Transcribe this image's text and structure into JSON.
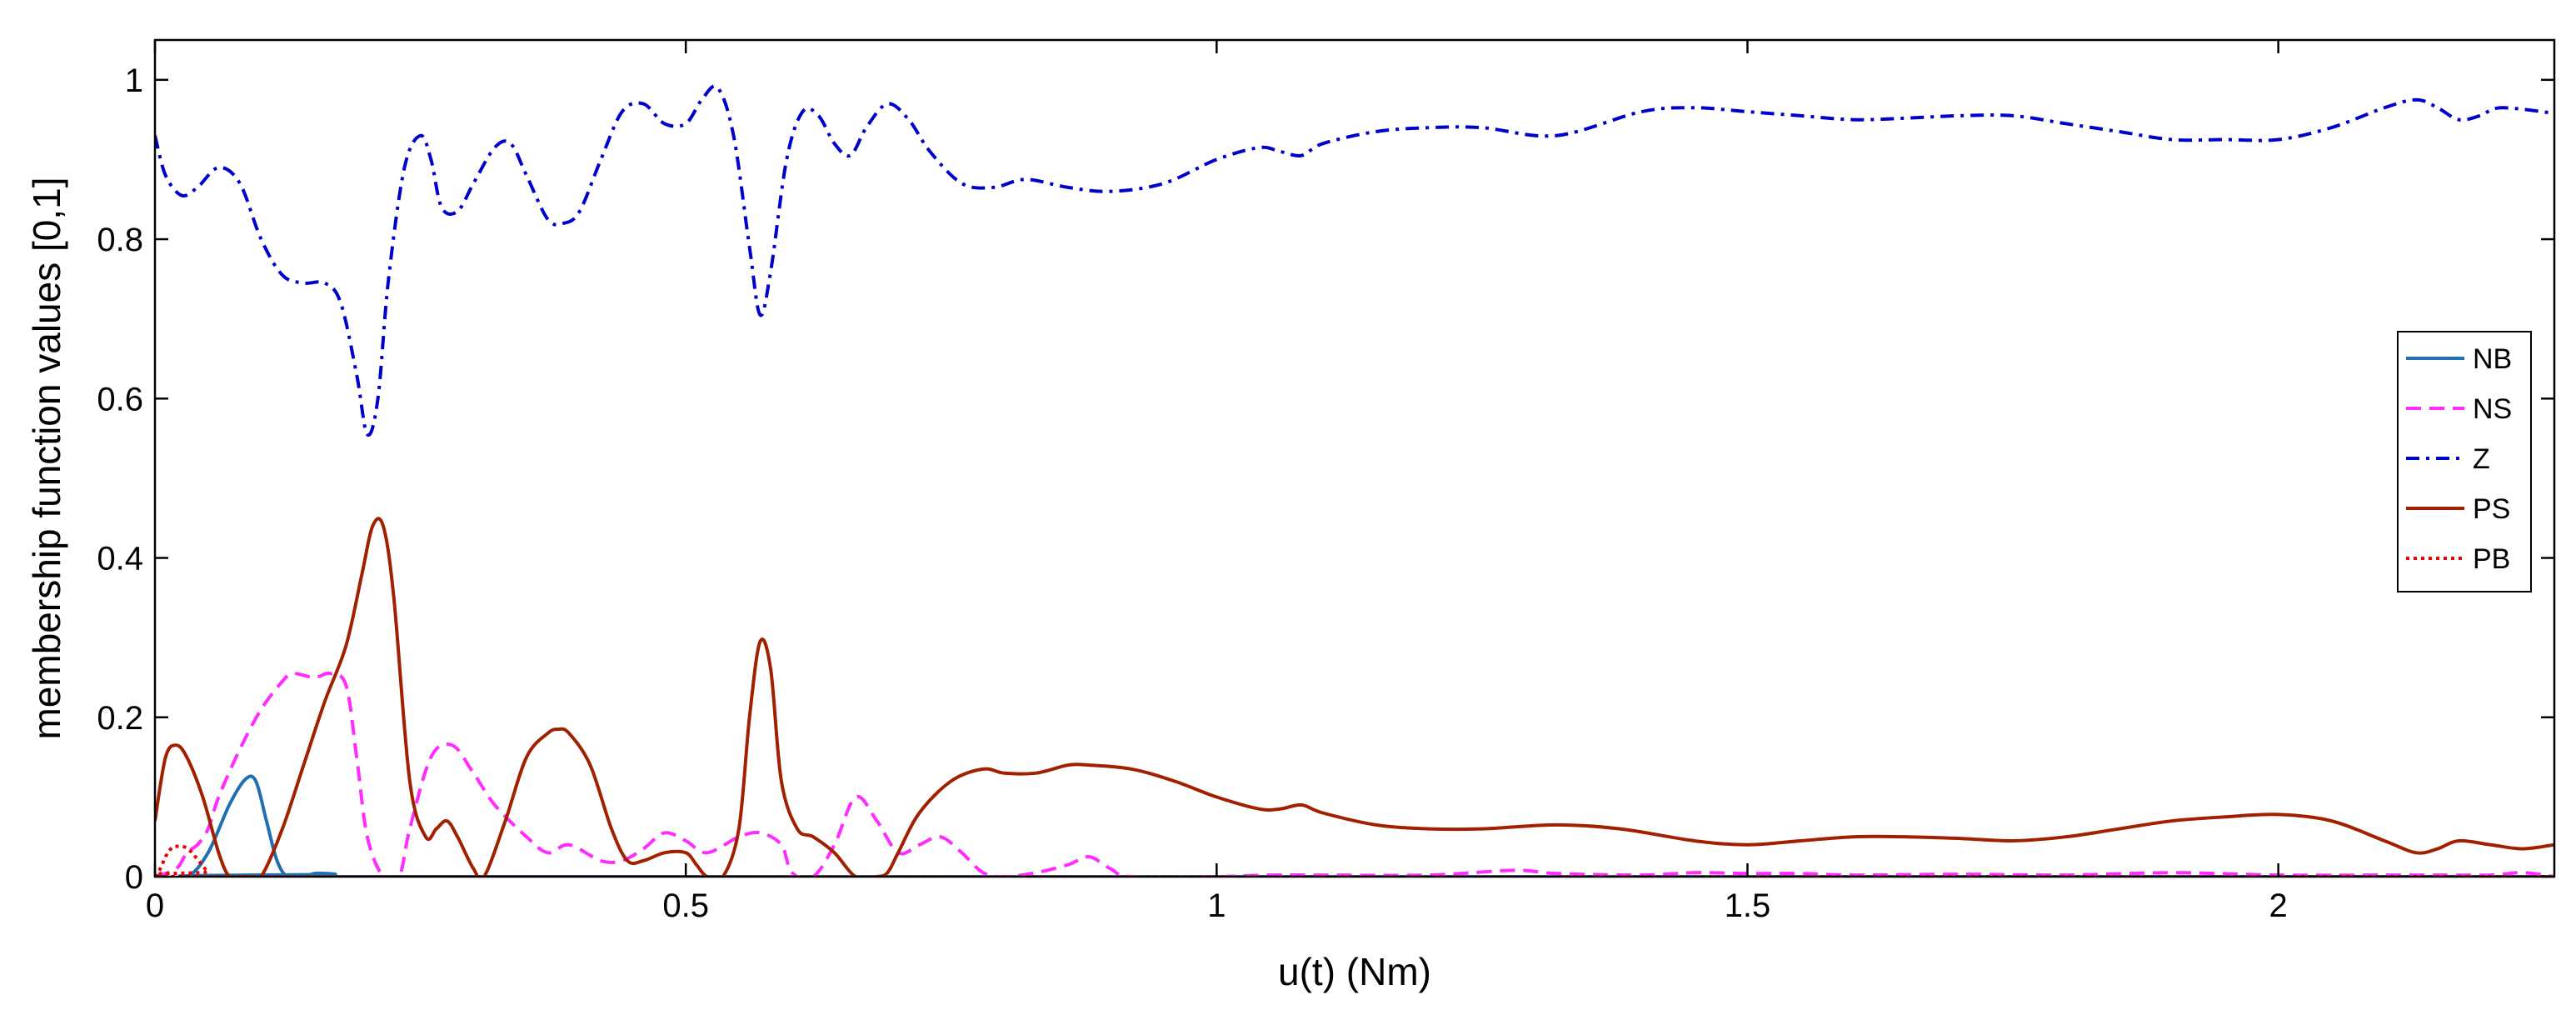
{
  "chart_data": {
    "type": "line",
    "title": "",
    "xlabel": "u(t) (Nm)",
    "ylabel": "membership function values [0,1]",
    "xlim": [
      0,
      2.26
    ],
    "ylim": [
      0,
      1.05
    ],
    "xticks": [
      0,
      0.5,
      1,
      1.5,
      2
    ],
    "xtick_labels": [
      "0",
      "0.5",
      "1",
      "1.5",
      "2"
    ],
    "yticks": [
      0,
      0.2,
      0.4,
      0.6,
      0.8,
      1
    ],
    "ytick_labels": [
      "0",
      "0.2",
      "0.4",
      "0.6",
      "0.8",
      "1"
    ],
    "grid": false,
    "legend_position": "right",
    "series": [
      {
        "name": "NB",
        "color": "#1f6fb2",
        "dash": "solid",
        "x": [
          0,
          0.03,
          0.05,
          0.07,
          0.085,
          0.095,
          0.105,
          0.115,
          0.125,
          0.14,
          0.15,
          0.16,
          0.17,
          0.18,
          2.26
        ],
        "y": [
          0,
          0,
          0.03,
          0.09,
          0.122,
          0.12,
          0.07,
          0.02,
          0,
          0,
          0.004,
          0.004,
          0.003,
          0,
          0
        ]
      },
      {
        "name": "NS",
        "color": "#ff2bff",
        "dash": "dashed",
        "x": [
          0,
          0.02,
          0.03,
          0.04,
          0.05,
          0.06,
          0.08,
          0.1,
          0.12,
          0.13,
          0.15,
          0.165,
          0.18,
          0.19,
          0.2,
          0.215,
          0.23,
          0.24,
          0.26,
          0.28,
          0.3,
          0.32,
          0.35,
          0.37,
          0.39,
          0.42,
          0.44,
          0.46,
          0.48,
          0.5,
          0.52,
          0.55,
          0.57,
          0.59,
          0.6,
          0.62,
          0.64,
          0.66,
          0.68,
          0.7,
          0.72,
          0.74,
          0.76,
          0.78,
          0.8,
          0.83,
          0.86,
          0.88,
          0.9,
          0.92,
          1.0,
          1.05,
          1.1,
          1.2,
          1.28,
          1.32,
          1.4,
          1.45,
          1.5,
          1.55,
          1.6,
          1.7,
          1.8,
          1.9,
          2.0,
          2.1,
          2.15,
          2.2,
          2.23,
          2.26
        ],
        "y": [
          0,
          0.01,
          0.03,
          0.04,
          0.06,
          0.1,
          0.16,
          0.21,
          0.245,
          0.255,
          0.25,
          0.255,
          0.24,
          0.15,
          0.05,
          0,
          0,
          0.06,
          0.15,
          0.165,
          0.13,
          0.09,
          0.05,
          0.03,
          0.04,
          0.02,
          0.02,
          0.035,
          0.055,
          0.045,
          0.03,
          0.05,
          0.055,
          0.04,
          0.005,
          0,
          0.04,
          0.1,
          0.07,
          0.03,
          0.04,
          0.05,
          0.03,
          0.005,
          0,
          0.005,
          0.015,
          0.025,
          0.01,
          0,
          0,
          0.002,
          0.002,
          0.002,
          0.008,
          0.004,
          0.002,
          0.005,
          0.004,
          0.004,
          0.002,
          0.003,
          0.002,
          0.005,
          0.002,
          0.002,
          0.002,
          0.002,
          0.005,
          0
        ]
      },
      {
        "name": "Z",
        "color": "#0000cc",
        "dash": "dashdot",
        "x": [
          0,
          0.01,
          0.025,
          0.04,
          0.06,
          0.08,
          0.1,
          0.12,
          0.14,
          0.16,
          0.175,
          0.19,
          0.2,
          0.21,
          0.22,
          0.235,
          0.25,
          0.26,
          0.27,
          0.285,
          0.3,
          0.32,
          0.335,
          0.35,
          0.37,
          0.385,
          0.4,
          0.42,
          0.44,
          0.46,
          0.48,
          0.5,
          0.515,
          0.53,
          0.545,
          0.56,
          0.57,
          0.58,
          0.595,
          0.61,
          0.625,
          0.64,
          0.655,
          0.67,
          0.69,
          0.71,
          0.73,
          0.76,
          0.79,
          0.82,
          0.86,
          0.9,
          0.95,
          1.0,
          1.04,
          1.06,
          1.08,
          1.1,
          1.15,
          1.2,
          1.25,
          1.32,
          1.4,
          1.45,
          1.5,
          1.55,
          1.6,
          1.65,
          1.7,
          1.75,
          1.8,
          1.85,
          1.9,
          1.95,
          2.0,
          2.05,
          2.1,
          2.13,
          2.15,
          2.17,
          2.19,
          2.21,
          2.26
        ],
        "y": [
          0.93,
          0.88,
          0.855,
          0.865,
          0.89,
          0.87,
          0.8,
          0.755,
          0.745,
          0.745,
          0.72,
          0.63,
          0.555,
          0.6,
          0.75,
          0.89,
          0.93,
          0.9,
          0.84,
          0.835,
          0.87,
          0.915,
          0.92,
          0.88,
          0.825,
          0.82,
          0.835,
          0.9,
          0.96,
          0.97,
          0.945,
          0.945,
          0.975,
          0.99,
          0.93,
          0.79,
          0.705,
          0.76,
          0.9,
          0.96,
          0.955,
          0.92,
          0.905,
          0.94,
          0.97,
          0.95,
          0.91,
          0.87,
          0.865,
          0.875,
          0.865,
          0.86,
          0.87,
          0.9,
          0.915,
          0.91,
          0.905,
          0.92,
          0.935,
          0.94,
          0.94,
          0.93,
          0.96,
          0.965,
          0.96,
          0.955,
          0.95,
          0.952,
          0.955,
          0.955,
          0.945,
          0.935,
          0.925,
          0.925,
          0.925,
          0.94,
          0.965,
          0.975,
          0.965,
          0.95,
          0.955,
          0.965,
          0.958
        ]
      },
      {
        "name": "PS",
        "color": "#a02000",
        "dash": "solid",
        "x": [
          0,
          0.01,
          0.02,
          0.03,
          0.045,
          0.06,
          0.07,
          0.08,
          0.09,
          0.1,
          0.12,
          0.14,
          0.16,
          0.18,
          0.195,
          0.205,
          0.215,
          0.225,
          0.24,
          0.255,
          0.265,
          0.275,
          0.285,
          0.3,
          0.31,
          0.33,
          0.35,
          0.37,
          0.38,
          0.39,
          0.41,
          0.43,
          0.445,
          0.46,
          0.48,
          0.5,
          0.51,
          0.52,
          0.535,
          0.55,
          0.56,
          0.57,
          0.58,
          0.59,
          0.605,
          0.62,
          0.64,
          0.66,
          0.68,
          0.69,
          0.7,
          0.72,
          0.75,
          0.78,
          0.8,
          0.83,
          0.86,
          0.88,
          0.92,
          0.96,
          1.0,
          1.04,
          1.06,
          1.08,
          1.1,
          1.15,
          1.2,
          1.25,
          1.32,
          1.38,
          1.45,
          1.5,
          1.55,
          1.6,
          1.65,
          1.7,
          1.75,
          1.8,
          1.85,
          1.9,
          1.95,
          2.0,
          2.05,
          2.1,
          2.13,
          2.15,
          2.17,
          2.2,
          2.23,
          2.26
        ],
        "y": [
          0.07,
          0.15,
          0.165,
          0.15,
          0.1,
          0.03,
          0,
          0,
          0,
          0,
          0.06,
          0.14,
          0.22,
          0.29,
          0.38,
          0.44,
          0.44,
          0.35,
          0.12,
          0.05,
          0.06,
          0.07,
          0.05,
          0.01,
          0,
          0.07,
          0.15,
          0.18,
          0.185,
          0.18,
          0.14,
          0.06,
          0.02,
          0.02,
          0.03,
          0.03,
          0.015,
          0,
          0,
          0.06,
          0.2,
          0.295,
          0.26,
          0.12,
          0.06,
          0.05,
          0.03,
          0,
          0,
          0.005,
          0.03,
          0.08,
          0.12,
          0.135,
          0.13,
          0.13,
          0.14,
          0.14,
          0.135,
          0.12,
          0.1,
          0.085,
          0.085,
          0.09,
          0.08,
          0.065,
          0.06,
          0.06,
          0.065,
          0.06,
          0.045,
          0.04,
          0.045,
          0.05,
          0.05,
          0.048,
          0.045,
          0.05,
          0.06,
          0.07,
          0.075,
          0.078,
          0.07,
          0.045,
          0.03,
          0.035,
          0.045,
          0.04,
          0.035,
          0.04
        ]
      },
      {
        "name": "PB",
        "color": "#ee0000",
        "dash": "dotted",
        "x": [
          0,
          0.005,
          0.01,
          0.015,
          0.02,
          0.03,
          0.04,
          0.05,
          0.06,
          2.26
        ],
        "y": [
          0,
          0.01,
          0.025,
          0.035,
          0.038,
          0.036,
          0.022,
          0.006,
          0,
          0
        ]
      }
    ]
  }
}
